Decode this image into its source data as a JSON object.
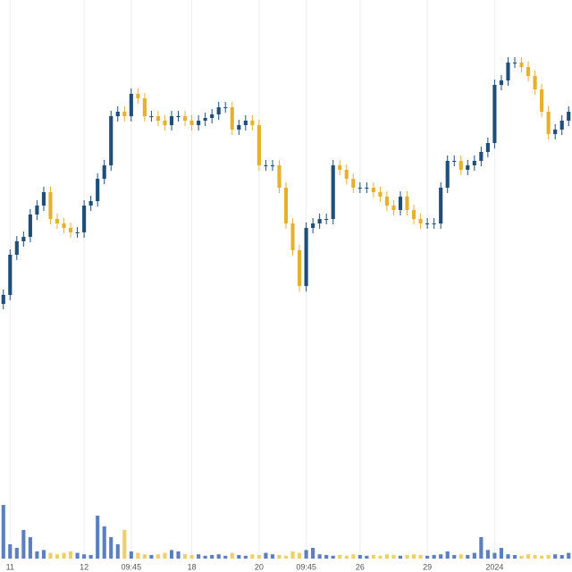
{
  "chart_data": {
    "type": "candlestick",
    "up_color": "#1f4e79",
    "down_color": "#e6b12e",
    "grid": true,
    "xlim": [
      -0.5,
      84.5
    ],
    "ylim": [
      0,
      640
    ],
    "y2lim": [
      0,
      100
    ],
    "xticks": [
      {
        "value": 1,
        "label": "11"
      },
      {
        "value": 12,
        "label": "12"
      },
      {
        "value": 19,
        "label": "09:45"
      },
      {
        "value": 28,
        "label": "18"
      },
      {
        "value": 38,
        "label": "20"
      },
      {
        "value": 45,
        "label": "09:45"
      },
      {
        "value": 53,
        "label": "26"
      },
      {
        "value": 63,
        "label": "29"
      },
      {
        "value": 73,
        "label": "2024"
      }
    ],
    "open": [
      300,
      310,
      355,
      370,
      375,
      400,
      410,
      425,
      395,
      390,
      385,
      380,
      380,
      410,
      415,
      440,
      455,
      510,
      515,
      510,
      535,
      530,
      510,
      510,
      505,
      500,
      510,
      510,
      505,
      500,
      505,
      508,
      512,
      520,
      520,
      495,
      500,
      505,
      500,
      455,
      455,
      455,
      430,
      390,
      360,
      320,
      385,
      390,
      395,
      395,
      455,
      450,
      440,
      430,
      430,
      430,
      425,
      420,
      410,
      405,
      420,
      405,
      395,
      390,
      390,
      390,
      430,
      460,
      460,
      450,
      455,
      460,
      470,
      480,
      545,
      550,
      570,
      570,
      565,
      555,
      540,
      515,
      490,
      495,
      505
    ],
    "high": [
      316,
      361,
      376,
      381,
      406,
      416,
      431,
      431,
      401,
      396,
      391,
      386,
      416,
      421,
      446,
      461,
      516,
      521,
      521,
      541,
      541,
      536,
      516,
      516,
      511,
      516,
      516,
      516,
      511,
      511,
      514,
      518,
      526,
      526,
      526,
      506,
      511,
      511,
      506,
      461,
      461,
      461,
      436,
      396,
      366,
      391,
      396,
      401,
      401,
      461,
      461,
      456,
      446,
      436,
      436,
      436,
      431,
      426,
      416,
      426,
      426,
      411,
      401,
      396,
      396,
      436,
      466,
      466,
      466,
      461,
      466,
      476,
      486,
      551,
      556,
      576,
      576,
      576,
      571,
      561,
      546,
      521,
      501,
      511,
      521
    ],
    "low": [
      294,
      304,
      349,
      364,
      369,
      394,
      404,
      389,
      384,
      379,
      374,
      374,
      374,
      404,
      409,
      434,
      449,
      504,
      504,
      504,
      524,
      504,
      504,
      499,
      494,
      494,
      504,
      499,
      494,
      494,
      499,
      502,
      506,
      514,
      489,
      489,
      494,
      494,
      449,
      449,
      449,
      424,
      384,
      354,
      314,
      314,
      379,
      384,
      389,
      389,
      444,
      434,
      424,
      424,
      424,
      419,
      414,
      404,
      399,
      399,
      399,
      389,
      384,
      384,
      384,
      384,
      424,
      454,
      444,
      444,
      449,
      454,
      464,
      474,
      539,
      544,
      564,
      559,
      549,
      534,
      509,
      484,
      484,
      489,
      499
    ],
    "close": [
      310,
      355,
      370,
      375,
      400,
      410,
      425,
      395,
      390,
      385,
      380,
      380,
      410,
      415,
      440,
      455,
      510,
      515,
      510,
      535,
      530,
      510,
      510,
      505,
      500,
      510,
      510,
      505,
      500,
      505,
      508,
      512,
      520,
      520,
      495,
      500,
      505,
      500,
      455,
      455,
      455,
      430,
      390,
      360,
      320,
      385,
      390,
      395,
      395,
      455,
      450,
      440,
      430,
      430,
      430,
      425,
      420,
      410,
      405,
      420,
      405,
      395,
      390,
      390,
      390,
      430,
      460,
      460,
      450,
      455,
      460,
      470,
      480,
      545,
      550,
      570,
      570,
      565,
      555,
      540,
      515,
      490,
      495,
      505,
      515
    ],
    "volume": [
      75,
      20,
      15,
      40,
      30,
      10,
      12,
      8,
      6,
      8,
      10,
      8,
      6,
      5,
      60,
      45,
      30,
      20,
      40,
      10,
      8,
      6,
      5,
      6,
      8,
      12,
      10,
      6,
      5,
      6,
      4,
      5,
      6,
      4,
      8,
      5,
      4,
      6,
      5,
      8,
      6,
      5,
      4,
      10,
      8,
      12,
      15,
      6,
      5,
      4,
      5,
      4,
      6,
      5,
      4,
      5,
      4,
      6,
      5,
      4,
      5,
      6,
      5,
      4,
      5,
      6,
      10,
      5,
      6,
      5,
      8,
      30,
      12,
      8,
      15,
      6,
      5,
      4,
      6,
      5,
      4,
      5,
      6,
      5,
      8
    ]
  }
}
